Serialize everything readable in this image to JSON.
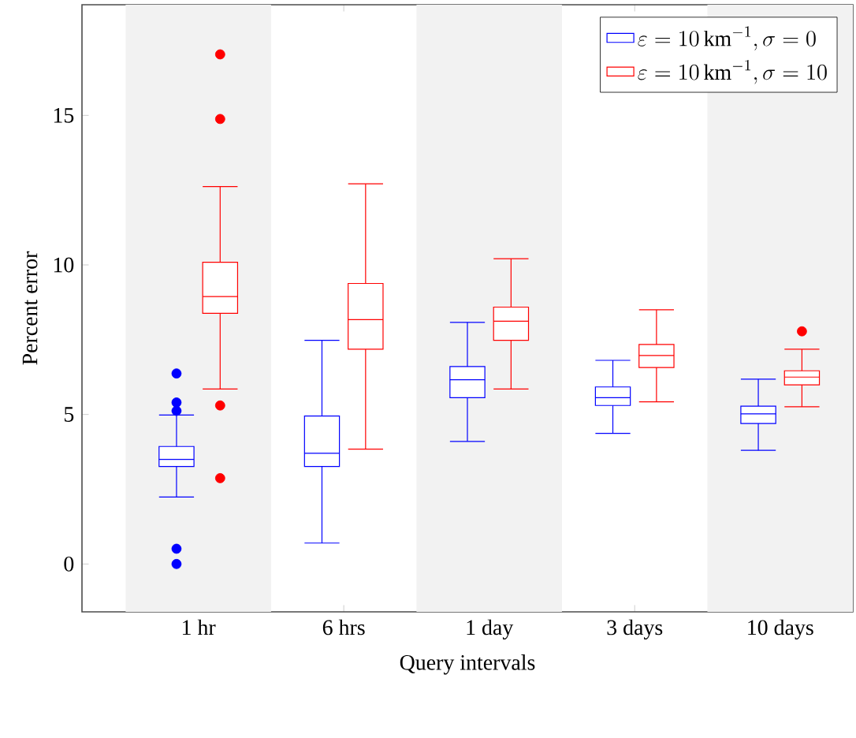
{
  "chart_data": {
    "type": "box",
    "xlabel": "Query intervals",
    "ylabel": "Percent error",
    "categories": [
      "1 hr",
      "6 hrs",
      "1 day",
      "3 days",
      "10 days"
    ],
    "ylim": [
      -1.6,
      18.7
    ],
    "yticks": [
      0,
      5,
      10,
      15
    ],
    "grid": false,
    "legend": "top right",
    "marker": "circle",
    "bands": [
      {
        "axis": "x",
        "from": "1 hr",
        "to": "1 hr",
        "color": "#f2f2f2"
      },
      {
        "axis": "x",
        "from": "1 day",
        "to": "1 day",
        "color": "#f2f2f2"
      },
      {
        "axis": "x",
        "from": "10 days",
        "to": "10 days",
        "color": "#f2f2f2"
      }
    ],
    "series": [
      {
        "name": "\\varepsilon = 10\\,\\mathrm{km}^{-1}, \\sigma = 0",
        "color": "#0000ff",
        "boxes": [
          {
            "low": 2.24,
            "q1": 3.26,
            "median": 3.5,
            "q3": 3.93,
            "high": 4.98,
            "outliers": [
              6.37,
              5.4,
              5.12,
              0.51,
              0.0
            ]
          },
          {
            "low": 0.7,
            "q1": 3.26,
            "median": 3.7,
            "q3": 4.95,
            "high": 7.48
          },
          {
            "low": 4.1,
            "q1": 5.56,
            "median": 6.16,
            "q3": 6.6,
            "high": 8.08
          },
          {
            "low": 4.37,
            "q1": 5.3,
            "median": 5.56,
            "q3": 5.92,
            "high": 6.81
          },
          {
            "low": 3.8,
            "q1": 4.7,
            "median": 5.02,
            "q3": 5.28,
            "high": 6.18
          }
        ]
      },
      {
        "name": "\\varepsilon = 10\\,\\mathrm{km}^{-1}, \\sigma = 10",
        "color": "#ff0000",
        "boxes": [
          {
            "low": 5.85,
            "q1": 8.38,
            "median": 8.94,
            "q3": 10.09,
            "high": 12.62,
            "outliers": [
              17.04,
              14.88,
              5.3,
              2.87
            ]
          },
          {
            "low": 3.84,
            "q1": 7.18,
            "median": 8.17,
            "q3": 9.38,
            "high": 12.71
          },
          {
            "low": 5.85,
            "q1": 7.48,
            "median": 8.12,
            "q3": 8.59,
            "high": 10.21
          },
          {
            "low": 5.42,
            "q1": 6.57,
            "median": 6.97,
            "q3": 7.34,
            "high": 8.5
          },
          {
            "low": 5.26,
            "q1": 5.99,
            "median": 6.25,
            "q3": 6.46,
            "high": 7.18,
            "outliers": [
              7.78
            ]
          }
        ]
      }
    ]
  }
}
